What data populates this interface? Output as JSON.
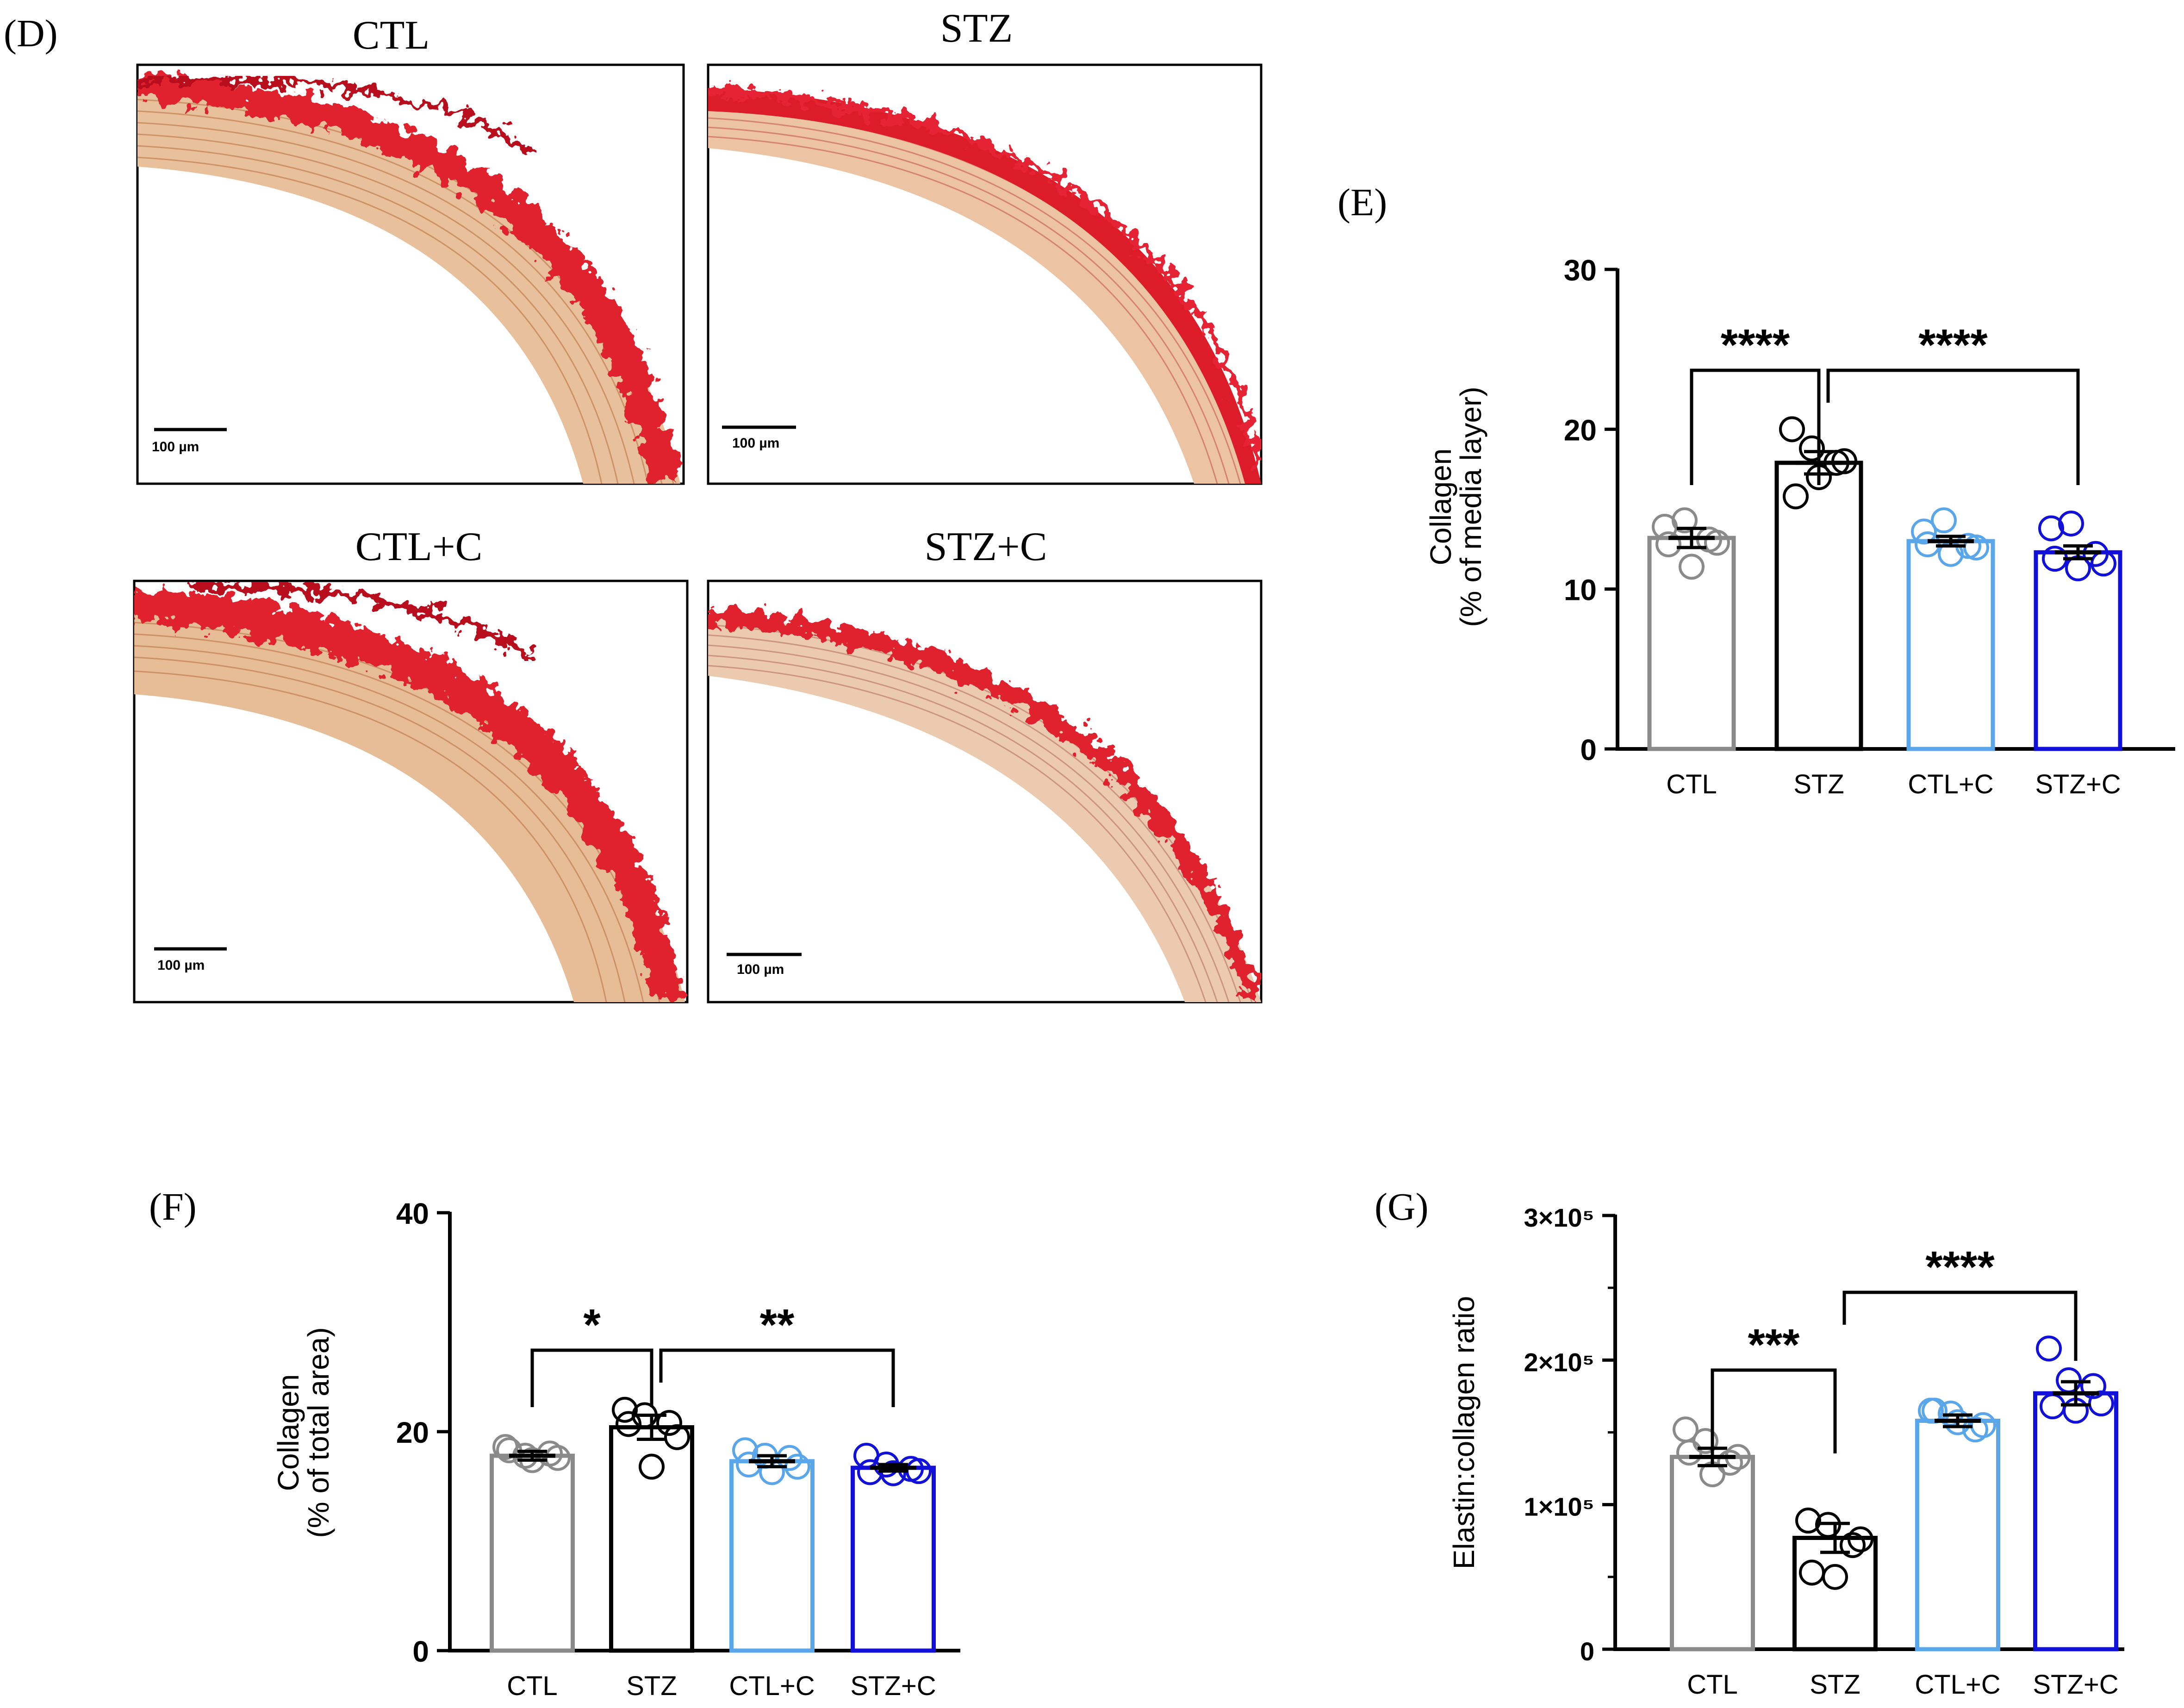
{
  "panels": {
    "D": {
      "label": "(D)"
    },
    "E": {
      "label": "(E)"
    },
    "F": {
      "label": "(F)"
    },
    "G": {
      "label": "(G)"
    }
  },
  "micrographs": [
    {
      "title": "CTL",
      "scale_label": "100 µm",
      "style": "loose"
    },
    {
      "title": "STZ",
      "scale_label": "100 µm",
      "style": "dense"
    },
    {
      "title": "CTL+C",
      "scale_label": "100 µm",
      "style": "loose"
    },
    {
      "title": "STZ+C",
      "scale_label": "100 µm",
      "style": "thin"
    }
  ],
  "colors": {
    "CTL": "#8a8a8a",
    "STZ": "#000000",
    "CTL+C": "#5aa6ea",
    "STZ+C": "#1010d8",
    "stain_red": "#e0202e",
    "stain_tan": "#e3b18a"
  },
  "chart_data": [
    {
      "id": "E",
      "type": "bar",
      "categories": [
        "CTL",
        "STZ",
        "CTL+C",
        "STZ+C"
      ],
      "values": [
        13.2,
        17.9,
        13.0,
        12.3
      ],
      "sem": [
        0.6,
        0.7,
        0.3,
        0.4
      ],
      "points": [
        [
          13.9,
          14.3,
          13.1,
          12.9,
          11.4,
          12.8
        ],
        [
          20.0,
          18.8,
          17.9,
          18.0,
          17.0,
          15.8
        ],
        [
          13.6,
          14.3,
          12.7,
          12.6,
          12.2,
          12.8
        ],
        [
          13.8,
          14.1,
          12.2,
          11.6,
          11.3,
          11.9
        ]
      ],
      "ylabel_line1": "Collagen",
      "ylabel_line2": "(% of media layer)",
      "ylim": [
        0,
        30
      ],
      "yticks": [
        "0",
        "10",
        "20",
        "30"
      ],
      "significance": [
        {
          "from": 0,
          "to": 1,
          "label": "****"
        },
        {
          "from": 1,
          "to": 3,
          "label": "****"
        }
      ]
    },
    {
      "id": "F",
      "type": "bar",
      "categories": [
        "CTL",
        "STZ",
        "CTL+C",
        "STZ+C"
      ],
      "values": [
        17.8,
        20.4,
        17.3,
        16.7
      ],
      "sem": [
        0.4,
        1.1,
        0.5,
        0.3
      ],
      "points": [
        [
          18.6,
          17.8,
          18.0,
          17.6,
          17.4,
          18.3
        ],
        [
          22.0,
          21.5,
          20.8,
          19.5,
          16.8,
          20.7
        ],
        [
          18.3,
          17.8,
          17.6,
          16.8,
          16.3,
          17.0
        ],
        [
          17.8,
          17.0,
          16.6,
          16.4,
          16.2,
          16.3
        ]
      ],
      "ylabel_line1": "Collagen",
      "ylabel_line2": "(% of total area)",
      "ylim": [
        0,
        40
      ],
      "yticks": [
        "0",
        "20",
        "40"
      ],
      "significance": [
        {
          "from": 0,
          "to": 1,
          "label": "*"
        },
        {
          "from": 1,
          "to": 3,
          "label": "**"
        }
      ]
    },
    {
      "id": "G",
      "type": "bar",
      "categories": [
        "CTL",
        "STZ",
        "CTL+C",
        "STZ+C"
      ],
      "values": [
        133000,
        77000,
        158000,
        177000
      ],
      "sem": [
        6000,
        10000,
        4000,
        8000
      ],
      "points": [
        [
          152000,
          144000,
          129000,
          133000,
          121000,
          136000
        ],
        [
          89000,
          86000,
          72000,
          76000,
          50000,
          53000
        ],
        [
          165000,
          163000,
          152000,
          155000,
          157000,
          165000
        ],
        [
          208000,
          186000,
          182000,
          170000,
          165000,
          168000
        ]
      ],
      "ylabel_line1": "Elastin:collagen ratio",
      "ylim": [
        0,
        300000
      ],
      "yticks": [
        "0",
        "1×10⁵",
        "2×10⁵",
        "3×10⁵"
      ],
      "significance": [
        {
          "from": 0,
          "to": 1,
          "label": "***"
        },
        {
          "from": 1,
          "to": 3,
          "label": "****"
        }
      ]
    }
  ]
}
